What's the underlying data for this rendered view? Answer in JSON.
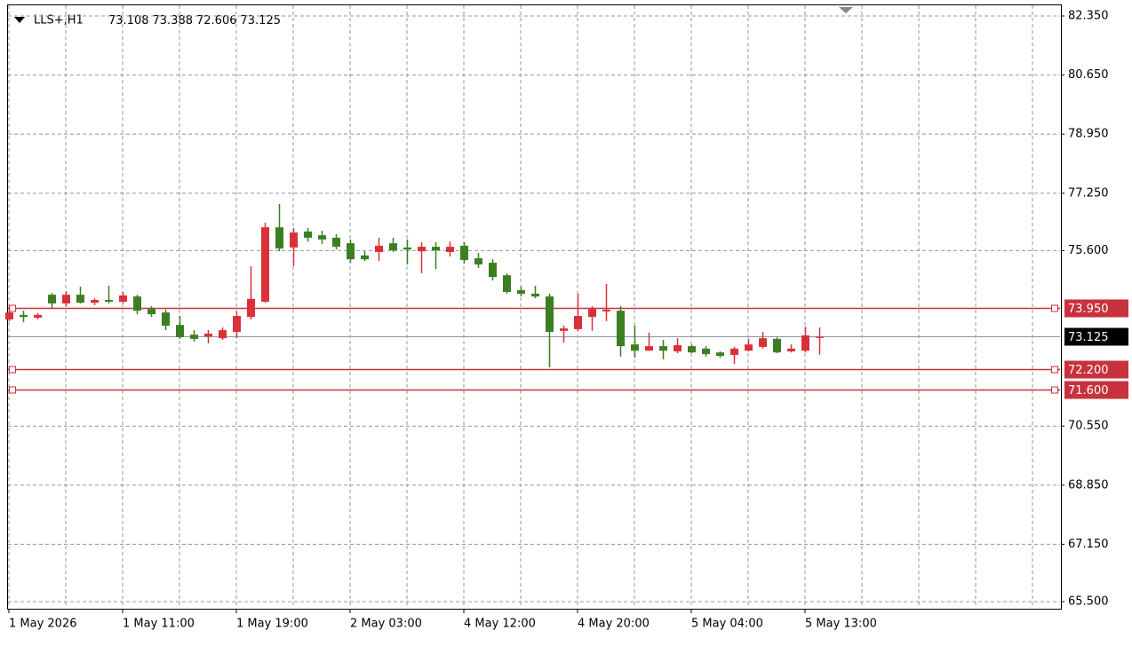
{
  "chart_data": {
    "type": "candlestick",
    "title": "LLS+,H1",
    "categories": [
      "1 May 2026",
      null,
      null,
      null,
      null,
      null,
      null,
      null,
      "1 May 11:00",
      null,
      null,
      null,
      null,
      null,
      null,
      null,
      "1 May 19:00",
      null,
      null,
      null,
      null,
      null,
      null,
      null,
      "2 May 03:00",
      null,
      null,
      null,
      null,
      null,
      null,
      null,
      "4 May 12:00",
      null,
      null,
      null,
      null,
      null,
      null,
      null,
      "4 May 20:00",
      null,
      null,
      null,
      null,
      null,
      null,
      null,
      "5 May 04:00",
      null,
      null,
      null,
      null,
      null,
      null,
      null,
      "5 May 13:00",
      null
    ],
    "open": [
      73.62,
      73.75,
      73.67,
      74.33,
      74.08,
      74.33,
      74.1,
      74.18,
      74.13,
      74.28,
      73.92,
      73.82,
      73.46,
      73.18,
      73.13,
      73.08,
      73.26,
      73.69,
      74.13,
      76.27,
      75.69,
      76.15,
      76.04,
      75.97,
      75.81,
      75.46,
      75.56,
      75.81,
      75.69,
      75.58,
      75.71,
      75.56,
      75.74,
      75.38,
      75.25,
      74.89,
      74.46,
      74.36,
      74.28,
      73.29,
      73.34,
      73.69,
      73.85,
      73.87,
      72.9,
      72.72,
      72.85,
      72.7,
      72.85,
      72.78,
      72.67,
      72.6,
      72.72,
      72.83,
      73.06,
      72.7,
      72.72,
      73.108
    ],
    "high": [
      74.0,
      73.87,
      73.8,
      74.38,
      74.43,
      74.56,
      74.23,
      74.59,
      74.41,
      74.33,
      74.0,
      73.9,
      73.72,
      73.31,
      73.31,
      73.39,
      73.85,
      75.15,
      76.4,
      76.94,
      76.25,
      76.25,
      76.17,
      76.07,
      75.92,
      75.58,
      75.97,
      75.97,
      75.92,
      75.84,
      75.84,
      75.86,
      75.84,
      75.53,
      75.35,
      74.95,
      74.56,
      74.59,
      74.36,
      73.44,
      74.36,
      74.0,
      74.64,
      74.0,
      73.44,
      73.24,
      73.03,
      73.08,
      72.9,
      72.85,
      72.7,
      72.83,
      73.06,
      73.26,
      73.11,
      72.9,
      73.41,
      73.388
    ],
    "low": [
      73.57,
      73.54,
      73.62,
      73.95,
      74.0,
      74.08,
      74.03,
      74.08,
      74.08,
      73.77,
      73.69,
      73.31,
      73.06,
      72.98,
      72.93,
      73.03,
      73.08,
      73.62,
      74.1,
      75.58,
      75.15,
      75.86,
      75.79,
      75.63,
      75.25,
      75.3,
      75.3,
      75.56,
      75.2,
      74.95,
      75.07,
      75.43,
      75.23,
      75.1,
      74.74,
      74.36,
      74.28,
      74.23,
      72.24,
      72.95,
      73.29,
      73.29,
      73.57,
      72.55,
      72.52,
      72.72,
      72.47,
      72.65,
      72.65,
      72.55,
      72.52,
      72.34,
      72.7,
      72.78,
      72.65,
      72.67,
      72.67,
      72.606
    ],
    "close": [
      73.82,
      73.69,
      73.75,
      74.08,
      74.33,
      74.1,
      74.18,
      74.13,
      74.31,
      73.87,
      73.77,
      73.44,
      73.11,
      73.06,
      73.21,
      73.31,
      73.72,
      74.21,
      76.27,
      75.66,
      76.12,
      75.97,
      75.92,
      75.71,
      75.35,
      75.35,
      75.74,
      75.61,
      75.63,
      75.71,
      75.61,
      75.71,
      75.33,
      75.2,
      74.84,
      74.41,
      74.36,
      74.28,
      73.26,
      73.36,
      73.72,
      73.92,
      73.9,
      72.85,
      72.72,
      72.85,
      72.72,
      72.88,
      72.67,
      72.62,
      72.57,
      72.78,
      72.9,
      73.08,
      72.67,
      72.78,
      73.16,
      73.125
    ],
    "up_color": "#d9313a",
    "down_color": "#3b7f22",
    "ylim": [
      65.296,
      82.682
    ],
    "yticks": [
      {
        "value": 82.35,
        "label": "82.350"
      },
      {
        "value": 80.65,
        "label": "80.650"
      },
      {
        "value": 78.95,
        "label": "78.950"
      },
      {
        "value": 77.25,
        "label": "77.250"
      },
      {
        "value": 75.6,
        "label": "75.600"
      },
      {
        "value": 70.55,
        "label": "70.550"
      },
      {
        "value": 68.85,
        "label": "68.850"
      },
      {
        "value": 67.15,
        "label": "67.150"
      },
      {
        "value": 65.5,
        "label": "65.500"
      }
    ],
    "grid": true,
    "hlines": [
      {
        "value": 73.95,
        "label": "73.950",
        "color": "#c8323c"
      },
      {
        "value": 72.2,
        "label": "72.200",
        "color": "#c8323c"
      },
      {
        "value": 71.6,
        "label": "71.600",
        "color": "#c8323c"
      }
    ],
    "last_price": {
      "value": 73.125,
      "label": "73.125",
      "color": "#8a96a6"
    }
  }
}
